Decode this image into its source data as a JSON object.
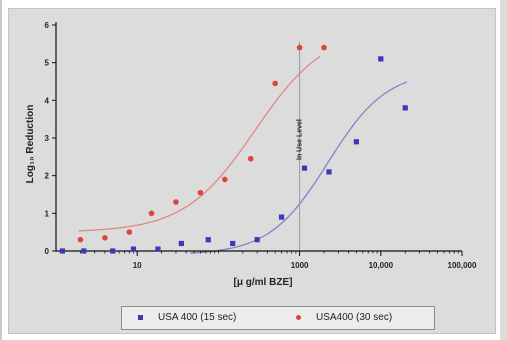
{
  "chart_data": {
    "type": "scatter",
    "title": "",
    "xlabel": "[μ g/ml BZE]",
    "ylabel": "Log₁₀ Reduction",
    "x_scale": "log",
    "xlim": [
      1,
      100000
    ],
    "ylim": [
      0,
      6
    ],
    "x_ticks": [
      10,
      1000,
      10000,
      100000
    ],
    "x_tick_labels": [
      "10",
      "1000",
      "10,000",
      "100,000"
    ],
    "y_ticks": [
      0,
      1,
      2,
      3,
      4,
      5,
      6
    ],
    "y_tick_labels": [
      "0",
      "1",
      "2",
      "3",
      "4",
      "5",
      "6"
    ],
    "grid": false,
    "legend_position": "bottom",
    "annotation": {
      "text": "In Use Level",
      "x": 1000
    },
    "series": [
      {
        "name": "USA 400 (15 sec)",
        "color": "#3a3ab4",
        "marker": "square",
        "x": [
          1.2,
          2.2,
          5,
          9,
          18,
          35,
          75,
          150,
          300,
          600,
          1150,
          2300,
          5000,
          10000,
          20000
        ],
        "y": [
          0,
          0,
          0,
          0.05,
          0.05,
          0.2,
          0.3,
          0.2,
          0.3,
          0.9,
          2.2,
          2.1,
          2.9,
          5.1,
          3.8
        ]
      },
      {
        "name": "USA400 (30 sec)",
        "color": "#e0453c",
        "marker": "circle",
        "x": [
          2,
          4,
          8,
          15,
          30,
          60,
          120,
          250,
          500,
          1000,
          2000
        ],
        "y": [
          0.3,
          0.35,
          0.5,
          1.0,
          1.3,
          1.55,
          1.9,
          2.45,
          4.45,
          5.4,
          5.4
        ]
      }
    ]
  }
}
